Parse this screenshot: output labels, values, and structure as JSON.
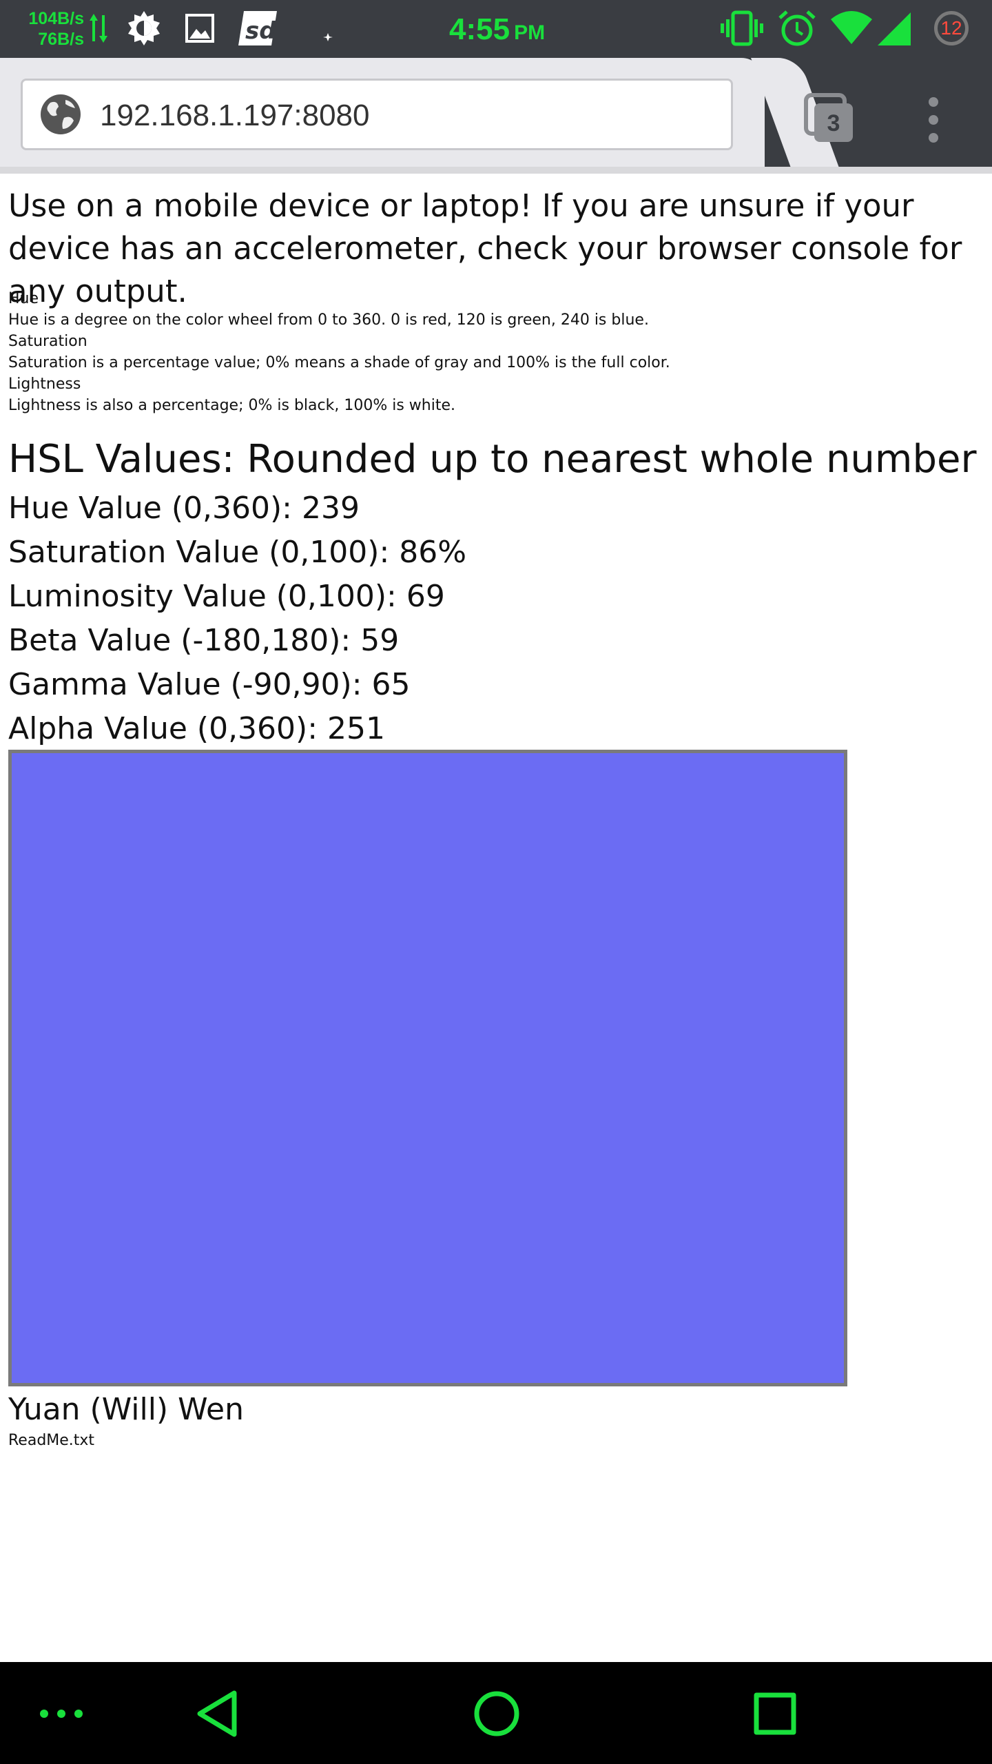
{
  "status_bar": {
    "net_down": "104B/s",
    "net_up": "76B/s",
    "time": "4:55",
    "ampm": "PM",
    "notification_count": "12",
    "accent_color": "#19e03c",
    "icons": [
      "data-arrows-icon",
      "brightness-icon",
      "image-icon",
      "sd-card-icon",
      "do-not-disturb-moon-icon",
      "vibrate-icon",
      "alarm-icon",
      "wifi-icon",
      "signal-icon"
    ]
  },
  "browser": {
    "url": "192.168.1.197:8080",
    "tab_count": "3"
  },
  "page": {
    "intro": "Use on a mobile device or laptop! If you are unsure if your device has an accelerometer, check your browser console for any output.",
    "definitions": [
      {
        "term": "Hue",
        "text": "Hue is a degree on the color wheel from 0 to 360. 0 is red, 120 is green, 240 is blue."
      },
      {
        "term": "Saturation",
        "text": "Saturation is a percentage value; 0% means a shade of gray and 100% is the full color."
      },
      {
        "term": "Lightness",
        "text": "Lightness is also a percentage; 0% is black, 100% is white."
      }
    ],
    "hsl_title": "HSL Values: Rounded up to nearest whole number",
    "values": [
      "Hue Value (0,360): 239",
      "Saturation Value (0,100): 86%",
      "Luminosity Value (0,100): 69",
      "Beta Value (-180,180): 59",
      "Gamma Value (-90,90): 65",
      "Alpha Value (0,360): 251"
    ],
    "swatch_color": "#6b6cf3",
    "author": "Yuan (Will) Wen",
    "readme_link": "ReadMe.txt"
  }
}
